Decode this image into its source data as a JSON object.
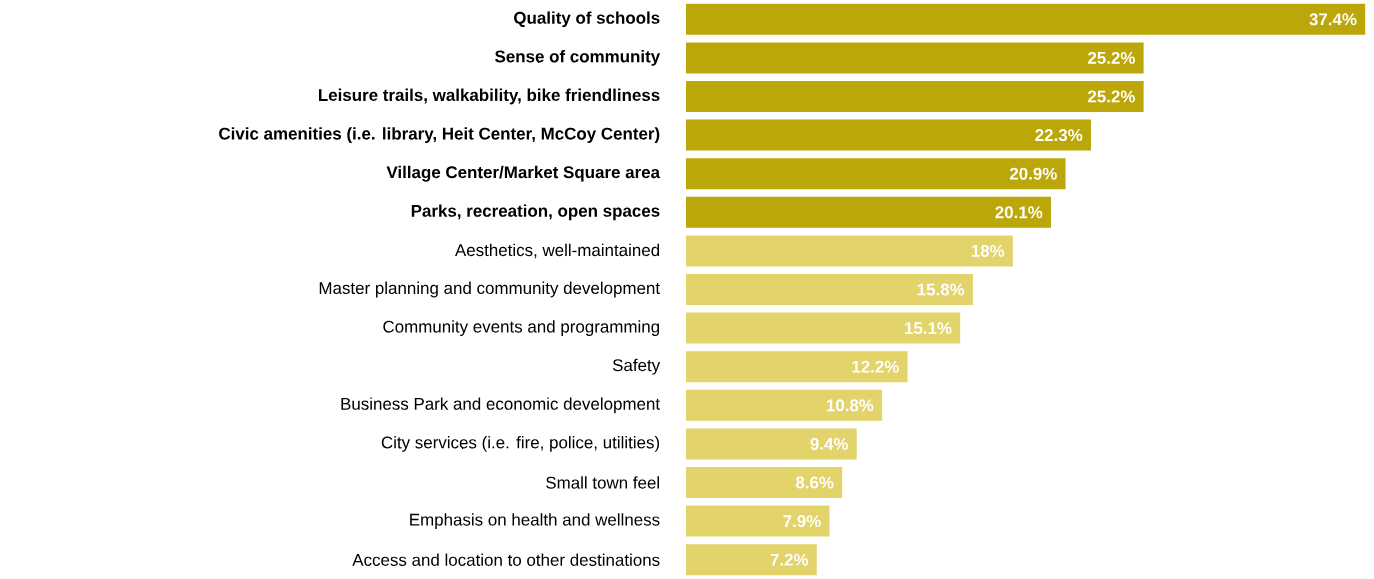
{
  "chart_data": {
    "type": "bar",
    "orientation": "horizontal",
    "relative": false,
    "categories": [
      "**Quality of schools**",
      "**Sense of community**",
      "**Leisure trails, walkability, bike friendliness**",
      "**Civic amenities (i.e. library, Heit Center, McCoy Center)**",
      "**Village Center/Market Square area**",
      "**Parks, recreation, open spaces**",
      "Aesthetics, well-maintained",
      "Master planning and community development",
      "Community events and programming",
      "Safety",
      "Business Park and economic development",
      "City services (i.e. fire, police, utilities)",
      "Small town feel",
      "Emphasis on health and wellness",
      "Access and location to other destinations"
    ],
    "values": [
      37.4,
      25.2,
      25.2,
      22.3,
      20.9,
      20.1,
      18,
      15.8,
      15.1,
      12.2,
      10.8,
      9.4,
      8.6,
      7.9,
      7.2
    ],
    "value_labels": [
      "37.4%",
      "25.2%",
      "25.2%",
      "22.3%",
      "20.9%",
      "20.1%",
      "18%",
      "15.8%",
      "15.1%",
      "12.2%",
      "10.8%",
      "9.4%",
      "8.6%",
      "7.9%",
      "7.2%"
    ],
    "colors": [
      "#bba709",
      "#bba709",
      "#bba709",
      "#bba709",
      "#bba709",
      "#bba709",
      "#e2d36b",
      "#e2d36b",
      "#e2d36b",
      "#e2d36b",
      "#e2d36b",
      "#e2d36b",
      "#e2d36b",
      "#e2d36b",
      "#e2d36b"
    ]
  }
}
